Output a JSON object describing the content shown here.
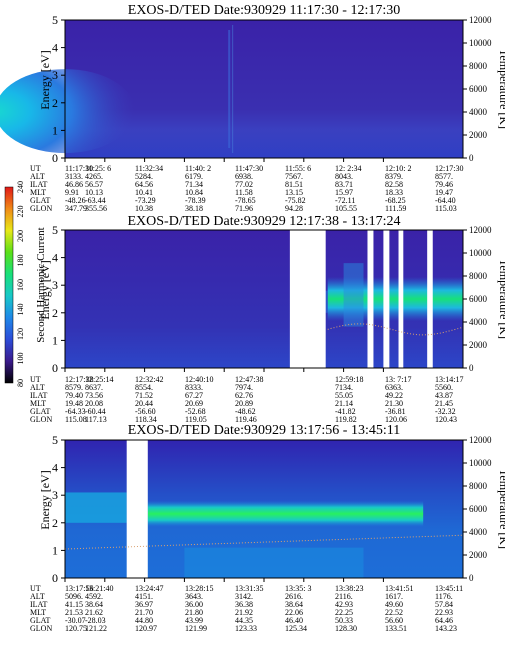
{
  "colors": {
    "background": "#ffffff",
    "spectrogram_low": "#3a22a8",
    "spectrogram_mid": "#1d7ee0",
    "spectrogram_peak": "#18e07a",
    "gap": "#ffffff",
    "temperature_trace": "#d9a070"
  },
  "colorbar": {
    "label": "Second Harmonic Current",
    "ticks": [
      "80",
      "100",
      "120",
      "140",
      "160",
      "180",
      "200",
      "220",
      "240"
    ],
    "stops": [
      "#000000",
      "#3a1a8c",
      "#2c4cd8",
      "#1f88e8",
      "#18c8c8",
      "#18e07a",
      "#5ae018",
      "#e8e818",
      "#f08a18",
      "#e01818"
    ]
  },
  "chart_data": [
    {
      "type": "heatmap",
      "title": "EXOS-D/TED   Date:930929  11:17:30 - 12:17:30",
      "ylabel": "Energy [eV]",
      "y2label": "Temperature [K]",
      "ylim": [
        0,
        5
      ],
      "y2lim": [
        0,
        12000
      ],
      "yticks": [
        "0",
        "1",
        "2",
        "3",
        "4",
        "5"
      ],
      "y2ticks": [
        "0",
        "2000",
        "4000",
        "6000",
        "8000",
        "10000",
        "12000"
      ],
      "row_labels": [
        "UT",
        "ALT",
        "ILAT",
        "MLT",
        "GLAT",
        "GLON"
      ],
      "columns": [
        [
          "11:17:30",
          "3133.",
          "46.86",
          "9.91",
          "-48.26",
          "347.79"
        ],
        [
          "11:25: 6",
          "4265.",
          "56.57",
          "10.13",
          "-63.44",
          "355.56"
        ],
        [
          "11:32:34",
          "5284.",
          "64.56",
          "10.41",
          "-73.29",
          "10.38"
        ],
        [
          "11:40: 2",
          "6179.",
          "71.34",
          "10.84",
          "-78.39",
          "38.18"
        ],
        [
          "11:47:30",
          "6938.",
          "77.02",
          "11.58",
          "-78.65",
          "71.96"
        ],
        [
          "11:55: 6",
          "7567.",
          "81.51",
          "13.15",
          "-75.82",
          "94.28"
        ],
        [
          "12: 2:34",
          "8043.",
          "83.71",
          "15.97",
          "-72.11",
          "105.55"
        ],
        [
          "12:10: 2",
          "8379.",
          "82.58",
          "18.33",
          "-68.25",
          "111.59"
        ],
        [
          "12:17:30",
          "8577.",
          "79.46",
          "19.47",
          "-64.40",
          "115.03"
        ]
      ],
      "gaps": []
    },
    {
      "type": "heatmap",
      "title": "EXOS-D/TED   Date:930929  12:17:38 - 13:17:24",
      "ylabel": "Energy [eV]",
      "y2label": "Temperature [K]",
      "ylim": [
        0,
        5
      ],
      "y2lim": [
        0,
        12000
      ],
      "yticks": [
        "0",
        "1",
        "2",
        "3",
        "4",
        "5"
      ],
      "y2ticks": [
        "0",
        "2000",
        "4000",
        "6000",
        "8000",
        "10000",
        "12000"
      ],
      "row_labels": [
        "UT",
        "ALT",
        "ILAT",
        "MLT",
        "GLAT",
        "GLON"
      ],
      "columns": [
        [
          "12:17:38",
          "8579.",
          "79.40",
          "19.48",
          "-64.33",
          "115.08"
        ],
        [
          "12:25:14",
          "8637.",
          "73.56",
          "20.08",
          "-60.44",
          "117.13"
        ],
        [
          "12:32:42",
          "8554.",
          "71.52",
          "20.44",
          "-56.60",
          "118.34"
        ],
        [
          "12:40:10",
          "8333.",
          "67.27",
          "20.69",
          "-52.68",
          "119.05"
        ],
        [
          "12:47:38",
          "7974.",
          "62.76",
          "20.89",
          "-48.62",
          "119.46"
        ],
        [
          "",
          "",
          "",
          "",
          "",
          ""
        ],
        [
          "12:59:18",
          "7134.",
          "55.05",
          "21.14",
          "-41.82",
          "119.82"
        ],
        [
          "13: 7:17",
          "6363.",
          "49.22",
          "21.30",
          "-36.81",
          "120.06"
        ],
        [
          "13:14:17",
          "5560.",
          "43.87",
          "21.45",
          "-32.32",
          "120.43"
        ]
      ],
      "gaps": [
        [
          0.565,
          0.655
        ],
        [
          0.76,
          0.775
        ],
        [
          0.8,
          0.815
        ],
        [
          0.838,
          0.85
        ],
        [
          0.91,
          0.924
        ]
      ]
    },
    {
      "type": "heatmap",
      "title": "EXOS-D/TED   Date:930929  13:17:56 - 13:45:11",
      "ylabel": "Energy [eV]",
      "y2label": "Temperature [K]",
      "ylim": [
        0,
        5
      ],
      "y2lim": [
        0,
        12000
      ],
      "yticks": [
        "0",
        "1",
        "2",
        "3",
        "4",
        "5"
      ],
      "y2ticks": [
        "0",
        "2000",
        "4000",
        "6000",
        "8000",
        "10000",
        "12000"
      ],
      "row_labels": [
        "UT",
        "ALT",
        "ILAT",
        "MLT",
        "GLAT",
        "GLON"
      ],
      "columns": [
        [
          "13:17:56",
          "5096.",
          "41.15",
          "21.53",
          "-30.07",
          "120.75"
        ],
        [
          "13:21:40",
          "4592.",
          "38.64",
          "21.62",
          "-28.03",
          "121.22"
        ],
        [
          "13:24:47",
          "4151.",
          "36.97",
          "21.70",
          "44.80",
          "120.97"
        ],
        [
          "13:28:15",
          "3643.",
          "36.00",
          "21.80",
          "43.99",
          "121.99"
        ],
        [
          "13:31:35",
          "3142.",
          "36.38",
          "21.92",
          "44.35",
          "123.33"
        ],
        [
          "13:35: 3",
          "2616.",
          "38.64",
          "22.06",
          "46.40",
          "125.34"
        ],
        [
          "13:38:23",
          "2116.",
          "42.93",
          "22.25",
          "50.33",
          "128.30"
        ],
        [
          "13:41:51",
          "1617.",
          "49.60",
          "22.52",
          "56.60",
          "133.51"
        ],
        [
          "13:45:11",
          "1176.",
          "57.84",
          "22.93",
          "64.46",
          "143.23"
        ]
      ],
      "gaps": [
        [
          0.155,
          0.208
        ]
      ]
    }
  ]
}
